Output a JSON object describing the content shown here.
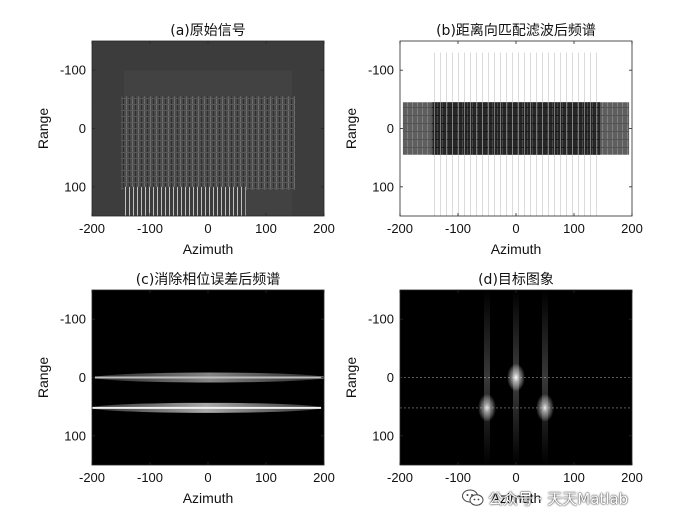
{
  "chart_data": [
    {
      "type": "heatmap",
      "title": "(a)原始信号",
      "xlabel": "Azimuth",
      "ylabel": "Range",
      "xlim": [
        -200,
        200
      ],
      "ylim": [
        -150,
        150
      ],
      "y_reversed": true,
      "xticks": [
        -200,
        -100,
        0,
        100,
        200
      ],
      "yticks": [
        -100,
        0,
        100
      ],
      "colormap": "gray",
      "background": "#3c3c3c",
      "regions": [
        {
          "kind": "band",
          "x": [
            -200,
            200
          ],
          "y": [
            -50,
            150
          ],
          "value": 0.24
        },
        {
          "kind": "band",
          "x": [
            -145,
            145
          ],
          "y": [
            -100,
            150
          ],
          "value": 0.26
        },
        {
          "kind": "texture",
          "x": [
            -150,
            150
          ],
          "y": [
            -55,
            105
          ],
          "value": 0.35
        },
        {
          "kind": "fringes",
          "x": [
            -145,
            65
          ],
          "y": [
            100,
            150
          ],
          "value": 0.8
        }
      ]
    },
    {
      "type": "heatmap",
      "title": "(b)距离向匹配滤波后频谱",
      "xlabel": "Azimuth",
      "ylabel": "Range",
      "xlim": [
        -200,
        200
      ],
      "ylim": [
        -150,
        150
      ],
      "y_reversed": true,
      "xticks": [
        -200,
        -100,
        0,
        100,
        200
      ],
      "yticks": [
        -100,
        0,
        100
      ],
      "colormap": "gray-inverted",
      "background": "#ffffff",
      "regions": [
        {
          "kind": "block",
          "x": [
            -145,
            145
          ],
          "y": [
            -45,
            45
          ],
          "value": 0.85
        },
        {
          "kind": "band",
          "x": [
            -195,
            195
          ],
          "y": [
            -45,
            45
          ],
          "value": 0.45
        },
        {
          "kind": "streaks",
          "x": [
            -145,
            145
          ],
          "y": [
            -130,
            150
          ],
          "value": 0.15
        }
      ]
    },
    {
      "type": "heatmap",
      "title": "(c)消除相位误差后频谱",
      "xlabel": "Azimuth",
      "ylabel": "Range",
      "xlim": [
        -200,
        200
      ],
      "ylim": [
        -150,
        150
      ],
      "y_reversed": true,
      "xticks": [
        -200,
        -100,
        0,
        100,
        200
      ],
      "yticks": [
        -100,
        0,
        100
      ],
      "colormap": "gray",
      "background": "#000000",
      "regions": [
        {
          "kind": "line",
          "x": [
            -195,
            200
          ],
          "y": 0,
          "value": 0.75
        },
        {
          "kind": "line",
          "x": [
            -200,
            195
          ],
          "y": 52,
          "value": 0.95
        }
      ]
    },
    {
      "type": "heatmap",
      "title": "(d)目标图象",
      "xlabel": "Azimuth",
      "ylabel": "Range",
      "xlim": [
        -200,
        200
      ],
      "ylim": [
        -150,
        150
      ],
      "y_reversed": true,
      "xticks": [
        -200,
        -100,
        0,
        100,
        200
      ],
      "yticks": [
        -100,
        0,
        100
      ],
      "colormap": "gray",
      "background": "#000000",
      "points": [
        {
          "x": 0,
          "y": 0,
          "value": 1.0
        },
        {
          "x": -50,
          "y": 52,
          "value": 0.9
        },
        {
          "x": 50,
          "y": 52,
          "value": 0.9
        }
      ],
      "regions": [
        {
          "kind": "line",
          "x": [
            -200,
            200
          ],
          "y": 0,
          "value": 0.35
        },
        {
          "kind": "line",
          "x": [
            -200,
            200
          ],
          "y": 52,
          "value": 0.35
        }
      ]
    }
  ],
  "watermark": {
    "text": "公众号 · 天天Matlab",
    "icon": "wechat-icon"
  }
}
